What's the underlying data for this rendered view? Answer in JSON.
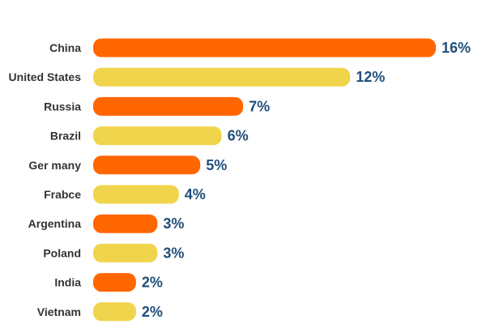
{
  "chart_data": {
    "type": "bar",
    "orientation": "horizontal",
    "categories": [
      "China",
      "United States",
      "Russia",
      "Brazil",
      "Ger many",
      "Frabce",
      "Argentina",
      "Poland",
      "India",
      "Vietnam"
    ],
    "values": [
      16,
      12,
      7,
      6,
      5,
      4,
      3,
      3,
      2,
      2
    ],
    "value_labels": [
      "16%",
      "12%",
      "7%",
      "6%",
      "5%",
      "4%",
      "3%",
      "3%",
      "2%",
      "2%"
    ],
    "bar_lengths": [
      16,
      12,
      7,
      6,
      5,
      4,
      3,
      3,
      2,
      2
    ],
    "title": "",
    "xlabel": "",
    "ylabel": "",
    "grid": false,
    "legend": "none",
    "colors": {
      "orange": "#ff6600",
      "yellow": "#f0d44c",
      "value_text": "#1f4e79",
      "category_text": "#333333"
    },
    "bar_color_pattern": [
      "orange",
      "yellow"
    ]
  }
}
